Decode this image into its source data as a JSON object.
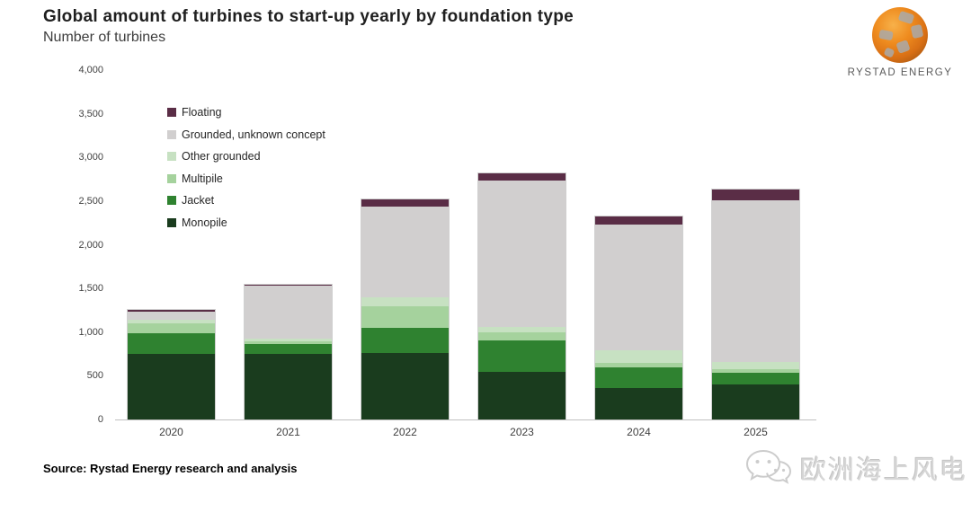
{
  "header": {
    "title": "Global amount of turbines to start-up yearly by foundation type",
    "subtitle": "Number of turbines"
  },
  "logo": {
    "brand": "RYSTAD ENERGY",
    "globe_orange": "#ef8c1f",
    "globe_gray": "#9a9a9a"
  },
  "chart_data": {
    "type": "bar",
    "stacked": true,
    "title": "Global amount of turbines to start-up yearly by foundation type",
    "ylabel": "Number of turbines",
    "xlabel": "",
    "ylim": [
      0,
      4000
    ],
    "ytick_step": 500,
    "yticks": [
      "0",
      "500",
      "1,000",
      "1,500",
      "2,000",
      "2,500",
      "3,000",
      "3,500",
      "4,000"
    ],
    "grid": false,
    "legend_position": "top-left",
    "categories": [
      "2020",
      "2021",
      "2022",
      "2023",
      "2024",
      "2025"
    ],
    "series": [
      {
        "name": "Monopile",
        "color": "#1a3c1e",
        "values": [
          750,
          750,
          760,
          550,
          360,
          400
        ]
      },
      {
        "name": "Jacket",
        "color": "#2f8230",
        "values": [
          240,
          110,
          290,
          350,
          240,
          130
        ]
      },
      {
        "name": "Multipile",
        "color": "#a5d29d",
        "values": [
          110,
          40,
          250,
          100,
          50,
          50
        ]
      },
      {
        "name": "Other grounded",
        "color": "#c7e1c2",
        "values": [
          40,
          30,
          100,
          60,
          140,
          80
        ]
      },
      {
        "name": "Grounded, unknown concept",
        "color": "#d1cfcf",
        "values": [
          90,
          600,
          1040,
          1680,
          1440,
          1850
        ]
      },
      {
        "name": "Floating",
        "color": "#5a2d46",
        "values": [
          20,
          10,
          80,
          80,
          90,
          120
        ]
      }
    ],
    "legend_order_top_to_bottom": [
      "Floating",
      "Grounded, unknown concept",
      "Other grounded",
      "Multipile",
      "Jacket",
      "Monopile"
    ],
    "totals": [
      1250,
      1540,
      2520,
      2820,
      2320,
      2630
    ]
  },
  "footer": {
    "source": "Source: Rystad Energy research and analysis"
  },
  "watermark": {
    "text": "欧洲海上风电",
    "icon": "wechat-icon",
    "color": "#d6d6d6"
  }
}
